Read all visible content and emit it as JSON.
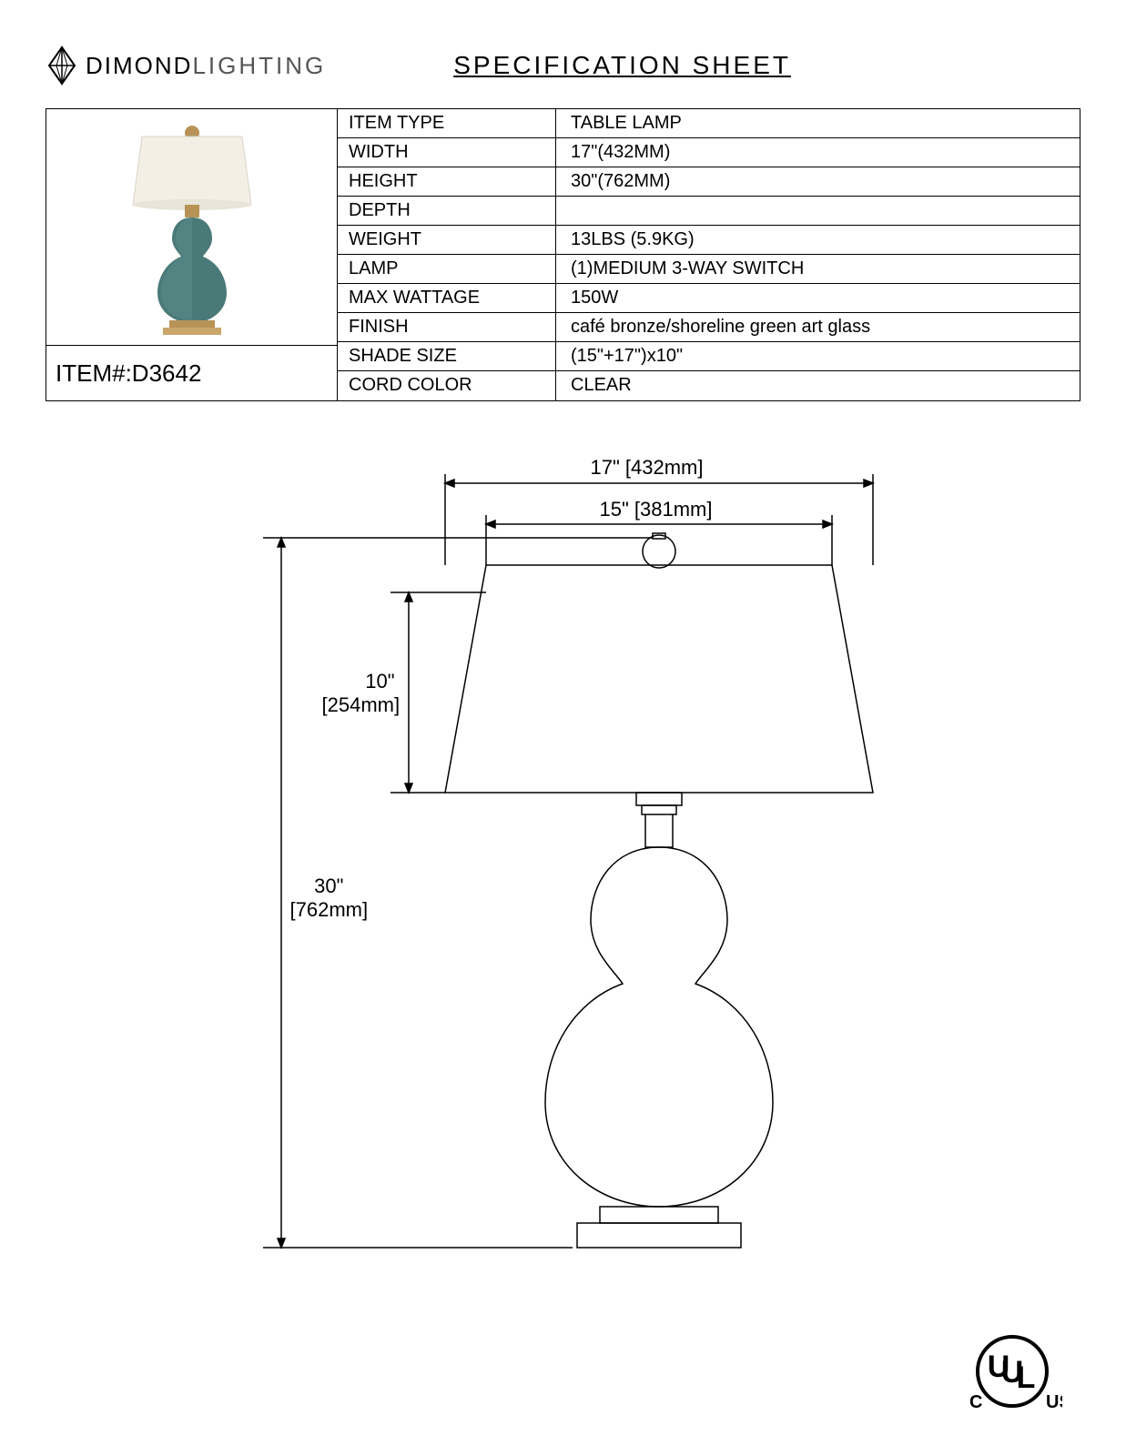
{
  "brand": {
    "first": "DIMOND",
    "second": "LIGHTING"
  },
  "title": "SPECIFICATION  SHEET",
  "item_label": "ITEM#:",
  "item_number": "D3642",
  "specs": [
    {
      "label": "ITEM TYPE",
      "value": "TABLE LAMP"
    },
    {
      "label": "WIDTH",
      "value": "17\"(432MM)"
    },
    {
      "label": "HEIGHT",
      "value": "30\"(762MM)"
    },
    {
      "label": "DEPTH",
      "value": ""
    },
    {
      "label": "WEIGHT",
      "value": "13LBS (5.9KG)"
    },
    {
      "label": "LAMP",
      "value": "(1)MEDIUM   3-WAY SWITCH"
    },
    {
      "label": "MAX WATTAGE",
      "value": "150W"
    },
    {
      "label": "FINISH",
      "value": "café bronze/shoreline green art glass"
    },
    {
      "label": "SHADE SIZE",
      "value": "(15\"+17\")x10\""
    },
    {
      "label": "CORD COLOR",
      "value": "CLEAR"
    }
  ],
  "dimensions": {
    "top_width": "17\" [432mm]",
    "shade_top": "15\" [381mm]",
    "shade_height_a": "10\"",
    "shade_height_b": "[254mm]",
    "total_height_a": "30\"",
    "total_height_b": "[762mm]"
  },
  "ul": {
    "c": "C",
    "ul": "UL",
    "us": "US"
  },
  "colors": {
    "shade": "#f3efe4",
    "body_top": "#5a8a8a",
    "body_bot": "#3a6a6a",
    "base": "#b89358",
    "line": "#000000"
  }
}
